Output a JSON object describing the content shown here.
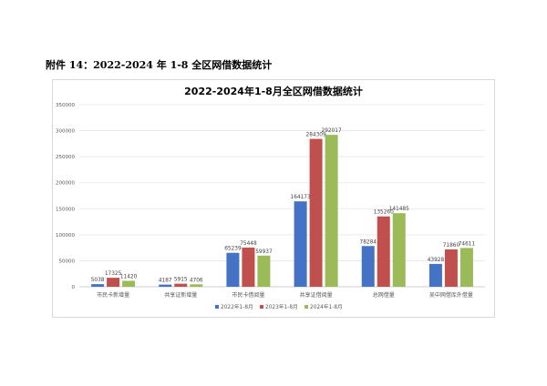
{
  "caption": "附件 14：2022-2024 年 1-8 全区网借数据统计",
  "chart_data": {
    "type": "bar",
    "title": "2022-2024年1-8月全区网借数据统计",
    "xlabel": "",
    "ylabel": "",
    "ylim": [
      0,
      350000
    ],
    "yticks": [
      0,
      50000,
      100000,
      150000,
      200000,
      250000,
      300000,
      350000
    ],
    "grid": true,
    "legend_position": "bottom",
    "categories": [
      "市民卡新增量",
      "共享证新增量",
      "市民卡借阅量",
      "共享证借阅量",
      "总网借量",
      "吴中网借库外借量"
    ],
    "series": [
      {
        "name": "2022年1-8月",
        "color": "#4472c4",
        "values": [
          5038,
          4187,
          65239,
          164173,
          78284,
          43928
        ]
      },
      {
        "name": "2023年1-8月",
        "color": "#c0504d",
        "values": [
          17325,
          5915,
          75448,
          284309,
          135260,
          71860
        ]
      },
      {
        "name": "2024年1-8月",
        "color": "#9bbb59",
        "values": [
          11420,
          4706,
          59937,
          292017,
          141485,
          74611
        ]
      }
    ]
  }
}
